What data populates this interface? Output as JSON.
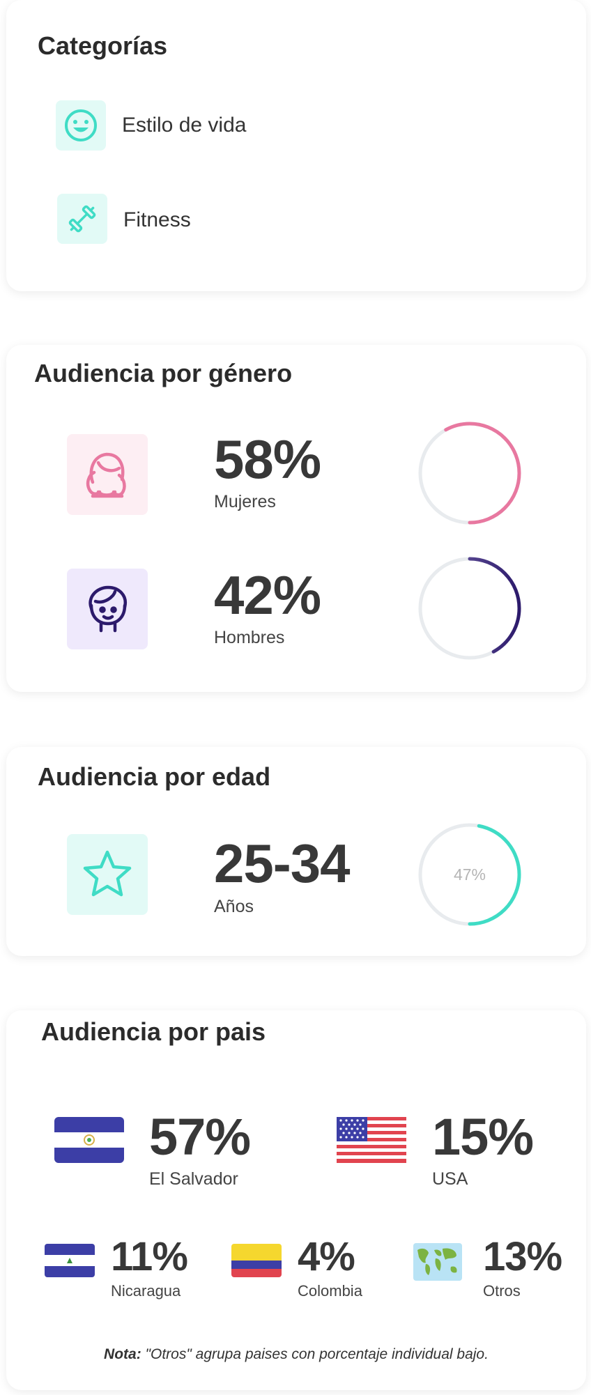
{
  "categories": {
    "title": "Categorías",
    "items": [
      {
        "label": "Estilo de vida",
        "icon": "smiley-icon"
      },
      {
        "label": "Fitness",
        "icon": "dumbbell-icon"
      }
    ]
  },
  "gender": {
    "title": "Audiencia por género",
    "items": [
      {
        "value": "58%",
        "label": "Mujeres",
        "percent": 58,
        "color": "#e878a0"
      },
      {
        "value": "42%",
        "label": "Hombres",
        "percent": 42,
        "color": "#2c1a6b"
      }
    ]
  },
  "age": {
    "title": "Audiencia por edad",
    "value": "25-34",
    "label": "Años",
    "percent": 47,
    "percent_text": "47%",
    "color": "#3fdcc5"
  },
  "country": {
    "title": "Audiencia por pais",
    "items": [
      {
        "value": "57%",
        "label": "El Salvador"
      },
      {
        "value": "15%",
        "label": "USA"
      },
      {
        "value": "11%",
        "label": "Nicaragua"
      },
      {
        "value": "4%",
        "label": "Colombia"
      },
      {
        "value": "13%",
        "label": "Otros"
      }
    ],
    "note_bold": "Nota:",
    "note_text": " \"Otros\" agrupa paises con porcentaje individual bajo."
  },
  "colors": {
    "teal": "#3fdcc5",
    "pink": "#e878a0",
    "purple": "#2c1a6b",
    "ring_track": "#e8ebee"
  }
}
